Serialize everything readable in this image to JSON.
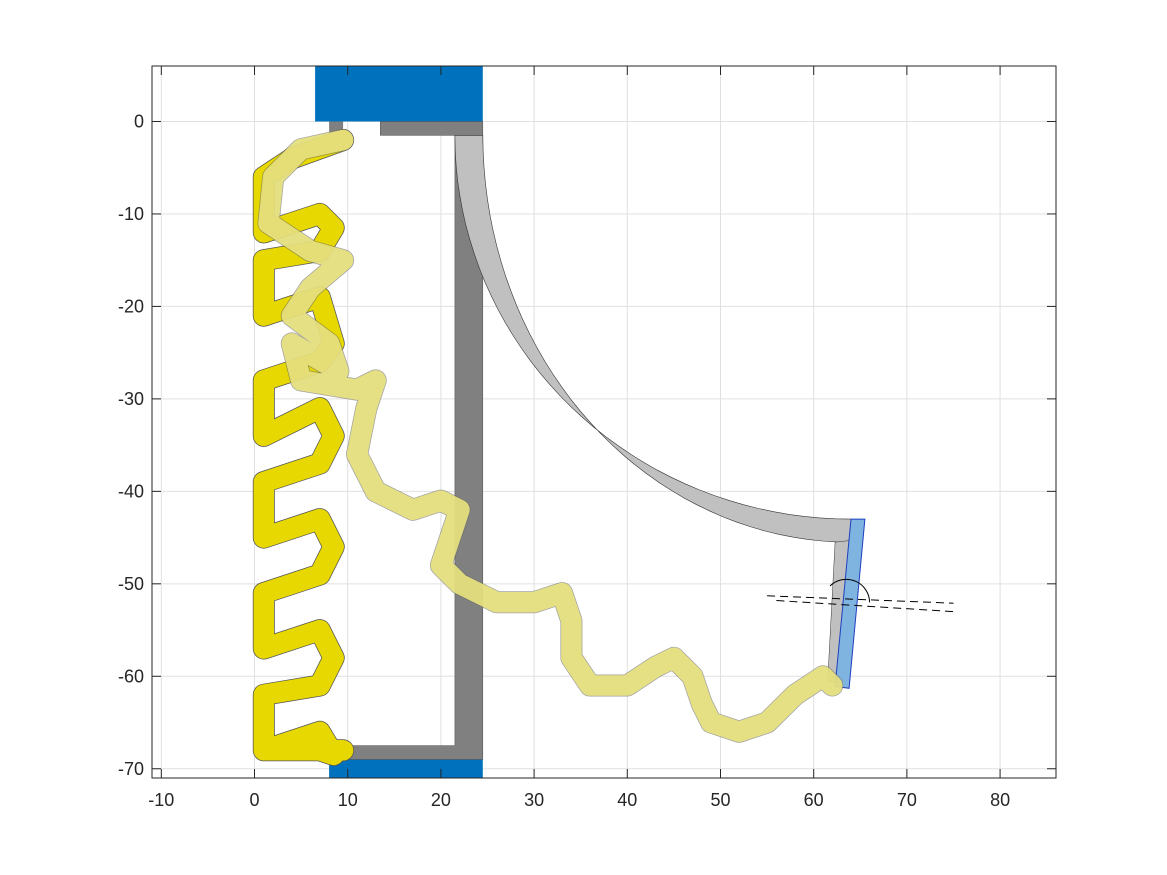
{
  "chart_data": {
    "type": "line",
    "title": "",
    "xlabel": "",
    "ylabel": "",
    "xlim": [
      -11,
      86
    ],
    "ylim": [
      -71,
      6
    ],
    "grid": true,
    "legend": "none",
    "x_ticks": [
      -10,
      0,
      10,
      20,
      30,
      40,
      50,
      60,
      70,
      80
    ],
    "y_ticks": [
      0,
      -10,
      -20,
      -30,
      -40,
      -50,
      -60,
      -70
    ],
    "x_tick_labels": [
      "-10",
      "0",
      "10",
      "20",
      "30",
      "40",
      "50",
      "60",
      "70",
      "80"
    ],
    "y_tick_labels": [
      "0",
      "-10",
      "-20",
      "-30",
      "-40",
      "-50",
      "-60",
      "-70"
    ],
    "colors": {
      "anchor": "#0072BD",
      "rigid_dark": "#808080",
      "rigid_light": "#C0C0C0",
      "spring": "#E6D800",
      "spring_deformed": "#F2EB80",
      "end_plate": "#7FB3E0",
      "grid": "#E0E0E0"
    },
    "series": [
      {
        "role": "undeformed-spring",
        "x": [
          9.5,
          4,
          1,
          1,
          7,
          8.5,
          7,
          1,
          1,
          7,
          8.5,
          7,
          1,
          1,
          7,
          8.5,
          7,
          1,
          1,
          7,
          8.5,
          7,
          1,
          1,
          7,
          8.5,
          7,
          1,
          1,
          7,
          8.5,
          7,
          1,
          1,
          7,
          8.5,
          9.5
        ],
        "y": [
          -2,
          -4,
          -6,
          -12,
          -10,
          -11.5,
          -14,
          -15,
          -21,
          -19,
          -24,
          -26,
          -28,
          -34,
          -31,
          -34,
          -37,
          -39,
          -45,
          -43,
          -46,
          -49,
          -51,
          -57,
          -55,
          -58,
          -61,
          -62,
          -68,
          -66,
          -68.5,
          -68,
          -68,
          -68,
          -68,
          -68,
          -68
        ]
      },
      {
        "role": "deformed-spring",
        "x": [
          9.5,
          5,
          2,
          1.5,
          6,
          9.5,
          6,
          4,
          8,
          9,
          4,
          5,
          11,
          13,
          12,
          11,
          13,
          17,
          20,
          22,
          21,
          20,
          22,
          26,
          30,
          33,
          34,
          34,
          36,
          40,
          43,
          45,
          47,
          48,
          49,
          52,
          55,
          58,
          61,
          62
        ],
        "y": [
          -2,
          -3,
          -6,
          -11,
          -14,
          -15,
          -18,
          -21,
          -24,
          -27,
          -24,
          -28,
          -29,
          -28,
          -31,
          -36,
          -40,
          -42,
          -41,
          -42,
          -45,
          -48,
          -50,
          -52,
          -52,
          -51,
          -54,
          -58,
          -61,
          -61,
          -59,
          -58,
          -60,
          -63,
          -65,
          -66,
          -65,
          -62,
          -60,
          -61
        ]
      },
      {
        "role": "reference-line-1",
        "x": [
          55,
          75
        ],
        "y": [
          -51.3,
          -52.1
        ]
      },
      {
        "role": "reference-line-2",
        "x": [
          56,
          75
        ],
        "y": [
          -51.8,
          -53.0
        ]
      }
    ],
    "annotations": [
      {
        "type": "angle-arc",
        "center": [
          63.5,
          -52
        ],
        "radius": 2.5
      }
    ]
  }
}
